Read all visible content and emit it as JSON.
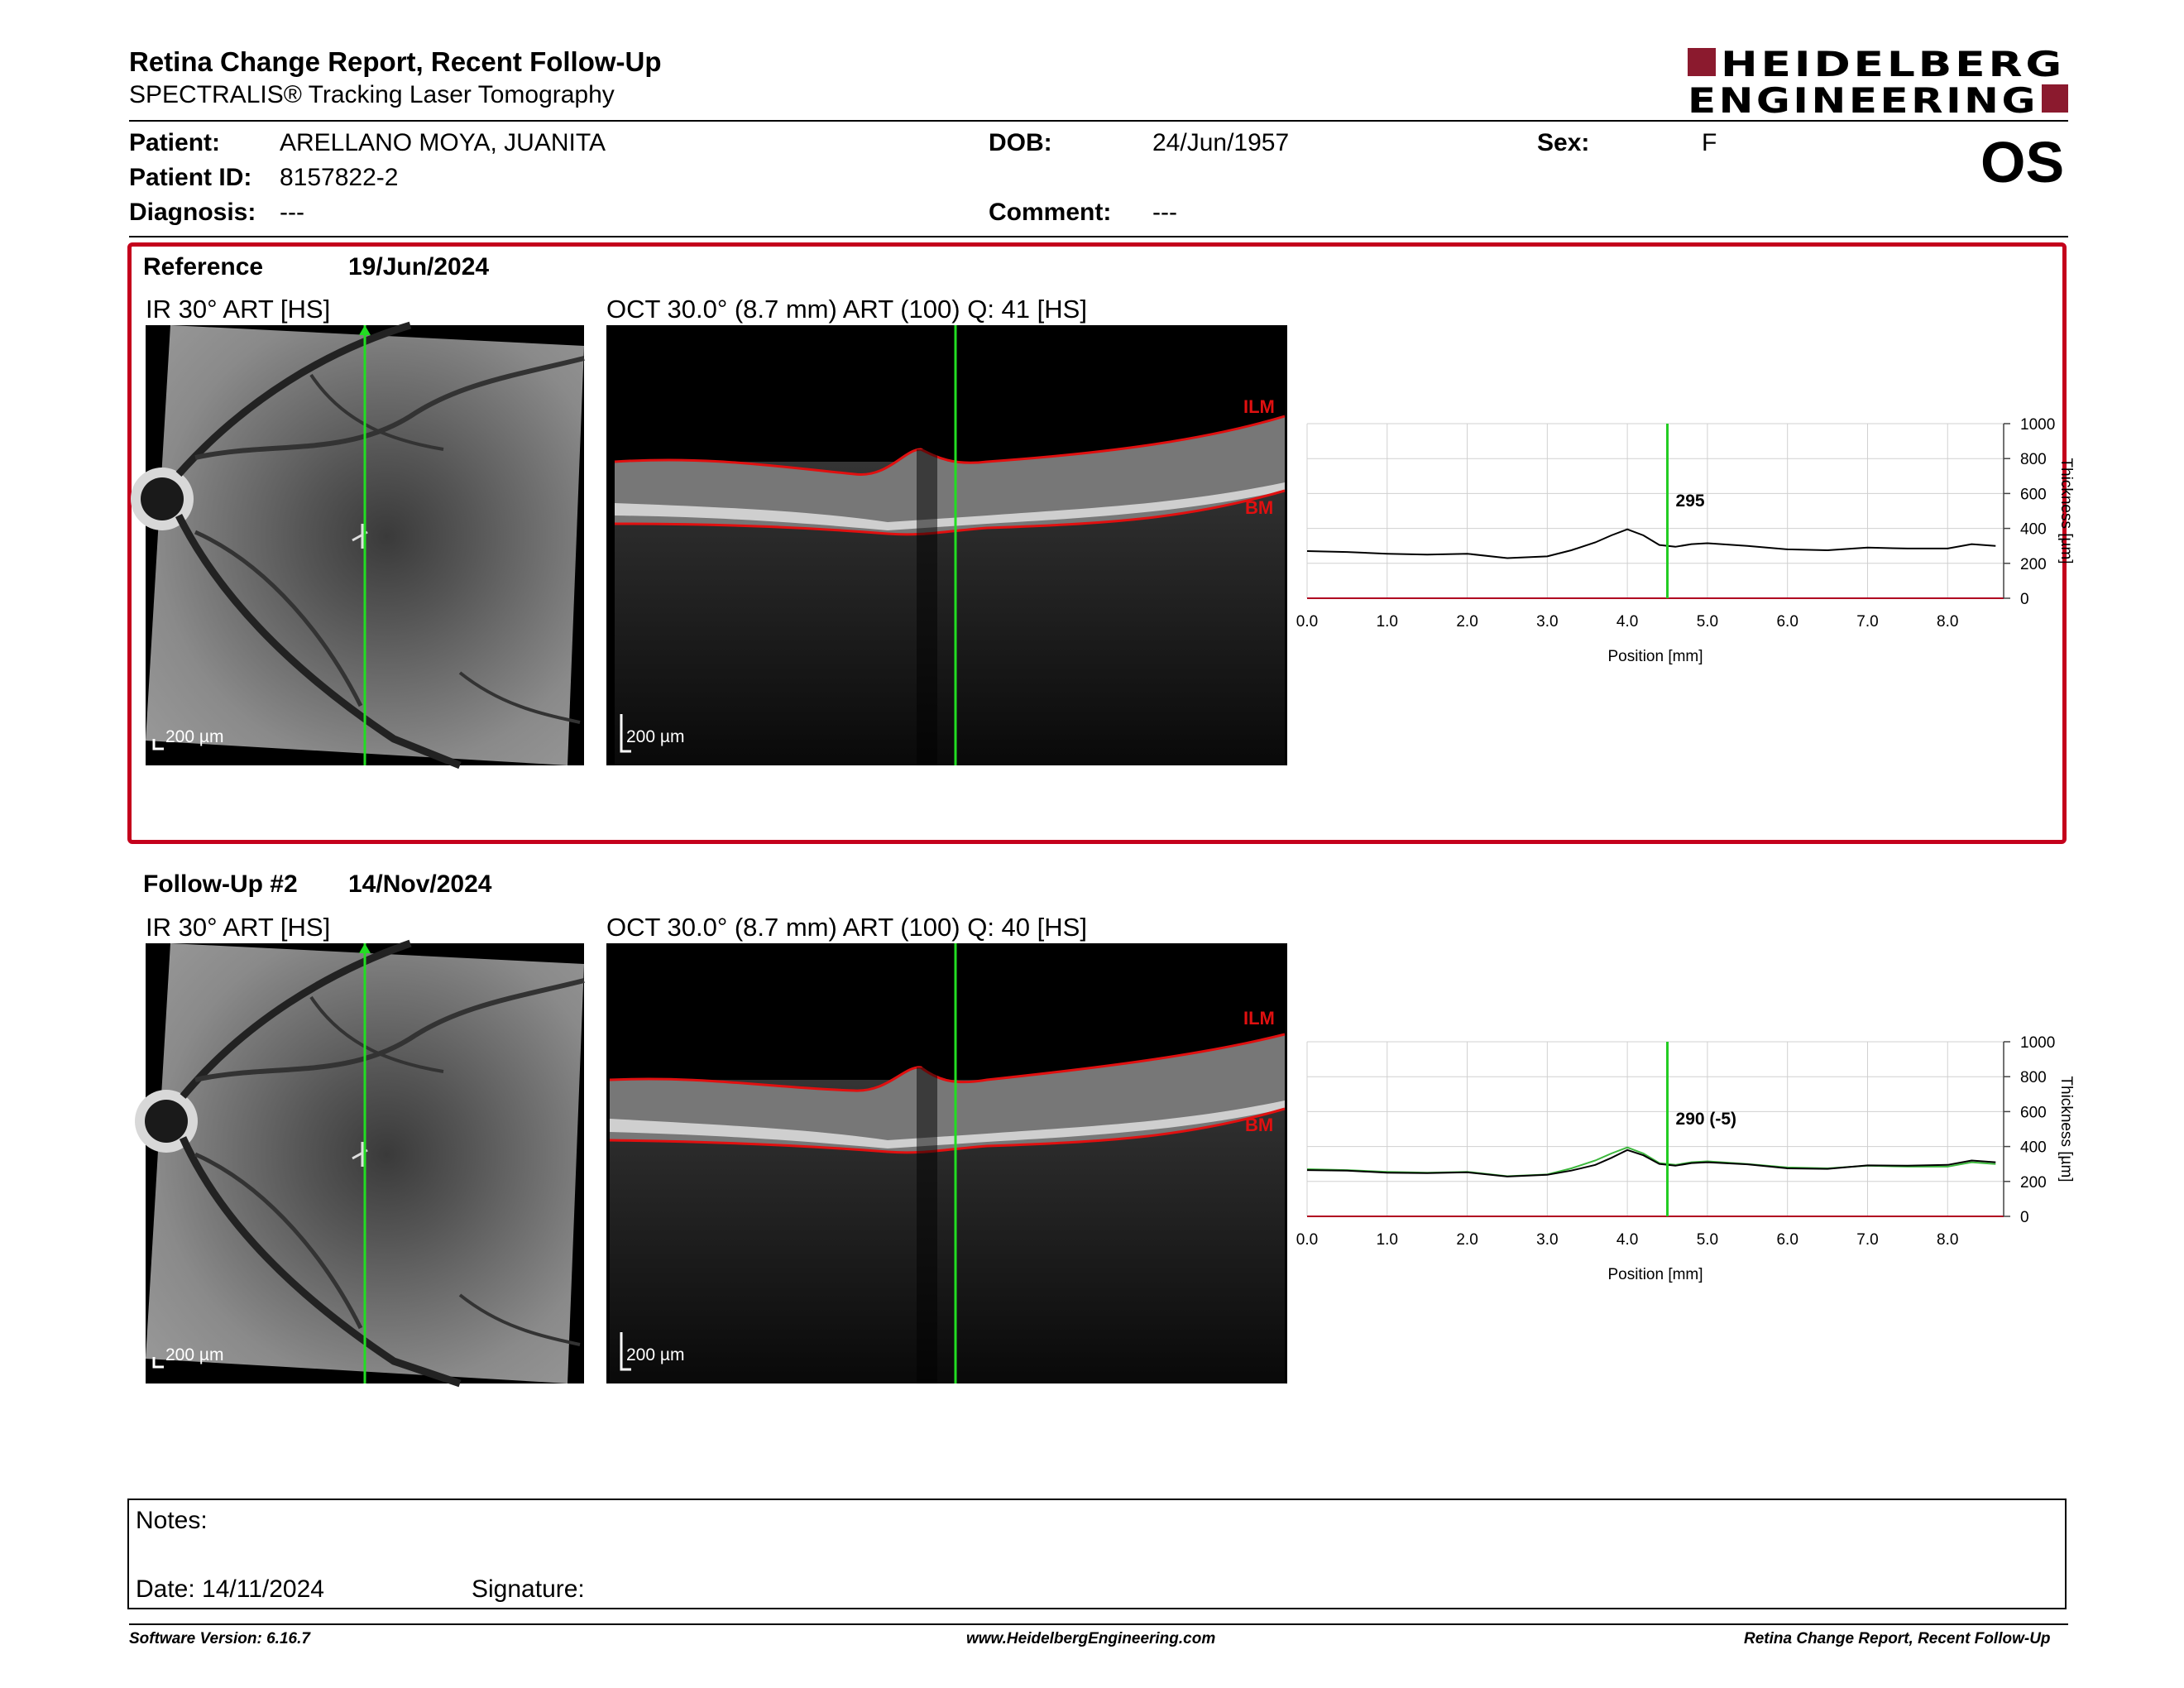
{
  "header": {
    "title": "Retina Change Report, Recent Follow-Up",
    "subtitle": "SPECTRALIS® Tracking Laser Tomography",
    "logo_line1": "HEIDELBERG",
    "logo_line2": "ENGINEERING",
    "eye": "OS"
  },
  "patient": {
    "name_label": "Patient:",
    "name": "ARELLANO MOYA, JUANITA",
    "id_label": "Patient ID:",
    "id": "8157822-2",
    "diagnosis_label": "Diagnosis:",
    "diagnosis": "---",
    "dob_label": "DOB:",
    "dob": "24/Jun/1957",
    "comment_label": "Comment:",
    "comment": "---",
    "sex_label": "Sex:",
    "sex": "F"
  },
  "reference": {
    "label": "Reference",
    "date": "19/Jun/2024",
    "ir_title": "IR 30° ART [HS]",
    "oct_title": "OCT 30.0° (8.7 mm) ART (100) Q: 41 [HS]",
    "ir_scale": "200 µm",
    "oct_scale": "200 µm",
    "ilm_label": "ILM",
    "bm_label": "BM"
  },
  "followup": {
    "label": "Follow-Up #2",
    "date": "14/Nov/2024",
    "ir_title": "IR 30° ART [HS]",
    "oct_title": "OCT 30.0° (8.7 mm) ART (100) Q: 40 [HS]",
    "ir_scale": "200 µm",
    "oct_scale": "200 µm",
    "ilm_label": "ILM",
    "bm_label": "BM"
  },
  "chart_data": [
    {
      "type": "line",
      "xlabel": "Position [mm]",
      "ylabel": "Thickness [µm]",
      "xlim": [
        0.0,
        8.7
      ],
      "ylim": [
        0,
        1000
      ],
      "x_ticks": [
        "0.0",
        "1.0",
        "2.0",
        "3.0",
        "4.0",
        "5.0",
        "6.0",
        "7.0",
        "8.0"
      ],
      "y_ticks": [
        "0",
        "200",
        "400",
        "600",
        "800",
        "1000"
      ],
      "cursor_x": 4.5,
      "cursor_label": "295",
      "grid": true,
      "series": [
        {
          "color": "#000000",
          "x": [
            0.0,
            0.5,
            1.0,
            1.5,
            2.0,
            2.5,
            3.0,
            3.3,
            3.6,
            3.8,
            4.0,
            4.2,
            4.4,
            4.6,
            4.8,
            5.0,
            5.5,
            6.0,
            6.5,
            7.0,
            7.5,
            8.0,
            8.3,
            8.6
          ],
          "y": [
            270,
            265,
            255,
            250,
            255,
            230,
            240,
            275,
            320,
            360,
            395,
            360,
            305,
            295,
            310,
            315,
            300,
            280,
            275,
            290,
            285,
            285,
            310,
            300
          ]
        }
      ]
    },
    {
      "type": "line",
      "xlabel": "Position [mm]",
      "ylabel": "Thickness [µm]",
      "xlim": [
        0.0,
        8.7
      ],
      "ylim": [
        0,
        1000
      ],
      "x_ticks": [
        "0.0",
        "1.0",
        "2.0",
        "3.0",
        "4.0",
        "5.0",
        "6.0",
        "7.0",
        "8.0"
      ],
      "y_ticks": [
        "0",
        "200",
        "400",
        "600",
        "800",
        "1000"
      ],
      "cursor_x": 4.5,
      "cursor_label": "290 (-5)",
      "grid": true,
      "series": [
        {
          "color": "#3db83d",
          "x": [
            0.0,
            0.5,
            1.0,
            1.5,
            2.0,
            2.5,
            3.0,
            3.3,
            3.6,
            3.8,
            4.0,
            4.2,
            4.4,
            4.6,
            4.8,
            5.0,
            5.5,
            6.0,
            6.5,
            7.0,
            7.5,
            8.0,
            8.3,
            8.6
          ],
          "y": [
            270,
            265,
            255,
            250,
            255,
            230,
            240,
            275,
            320,
            360,
            395,
            360,
            305,
            295,
            310,
            315,
            300,
            280,
            275,
            290,
            285,
            285,
            310,
            300
          ]
        },
        {
          "color": "#000000",
          "x": [
            0.0,
            0.5,
            1.0,
            1.5,
            2.0,
            2.5,
            3.0,
            3.3,
            3.6,
            3.8,
            4.0,
            4.2,
            4.4,
            4.6,
            4.8,
            5.0,
            5.5,
            6.0,
            6.5,
            7.0,
            7.5,
            8.0,
            8.3,
            8.6
          ],
          "y": [
            265,
            262,
            250,
            248,
            252,
            228,
            238,
            262,
            295,
            335,
            380,
            350,
            300,
            290,
            305,
            310,
            298,
            275,
            272,
            292,
            290,
            295,
            320,
            310
          ]
        }
      ]
    }
  ],
  "notes": {
    "notes_label": "Notes:",
    "date_label": "Date: 14/11/2024",
    "signature_label": "Signature:"
  },
  "footer": {
    "version": "Software Version: 6.16.7",
    "website": "www.HeidelbergEngineering.com",
    "report_name": "Retina Change Report, Recent Follow-Up"
  }
}
